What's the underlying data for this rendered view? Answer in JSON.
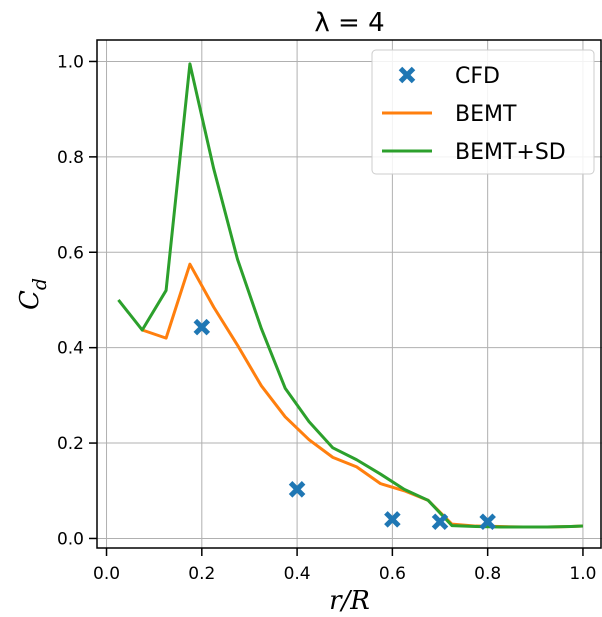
{
  "chart_data": {
    "type": "line",
    "title": "λ = 4",
    "xlabel": "r/R",
    "ylabel": "C_d",
    "xlim": [
      -0.02,
      1.04
    ],
    "ylim": [
      -0.02,
      1.045
    ],
    "xticks": [
      "0.0",
      "0.2",
      "0.4",
      "0.6",
      "0.8",
      "1.0"
    ],
    "yticks": [
      "0.0",
      "0.2",
      "0.4",
      "0.6",
      "0.8",
      "1.0"
    ],
    "grid": true,
    "legend_position": "top-right",
    "series": [
      {
        "name": "CFD",
        "kind": "scatter",
        "marker": "x",
        "color": "#1f77b4",
        "x": [
          0.2,
          0.4,
          0.6,
          0.7,
          0.8
        ],
        "y": [
          0.443,
          0.103,
          0.04,
          0.035,
          0.035
        ]
      },
      {
        "name": "BEMT",
        "kind": "line",
        "color": "#ff7f0e",
        "x": [
          0.075,
          0.125,
          0.175,
          0.225,
          0.275,
          0.325,
          0.375,
          0.425,
          0.475,
          0.525,
          0.575,
          0.625,
          0.675,
          0.725,
          0.775,
          0.825,
          0.875,
          0.925,
          0.975,
          1.0
        ],
        "y": [
          0.437,
          0.42,
          0.575,
          0.485,
          0.405,
          0.32,
          0.255,
          0.207,
          0.17,
          0.15,
          0.115,
          0.1,
          0.08,
          0.03,
          0.026,
          0.025,
          0.024,
          0.024,
          0.025,
          0.026
        ]
      },
      {
        "name": "BEMT+SD",
        "kind": "line",
        "color": "#2ca02c",
        "x": [
          0.025,
          0.075,
          0.125,
          0.175,
          0.225,
          0.275,
          0.325,
          0.375,
          0.425,
          0.475,
          0.525,
          0.575,
          0.625,
          0.675,
          0.725,
          0.775,
          0.825,
          0.875,
          0.925,
          0.975,
          1.0
        ],
        "y": [
          0.5,
          0.437,
          0.52,
          0.995,
          0.775,
          0.585,
          0.44,
          0.315,
          0.245,
          0.19,
          0.165,
          0.135,
          0.103,
          0.08,
          0.027,
          0.025,
          0.024,
          0.024,
          0.024,
          0.025,
          0.026
        ]
      }
    ]
  }
}
